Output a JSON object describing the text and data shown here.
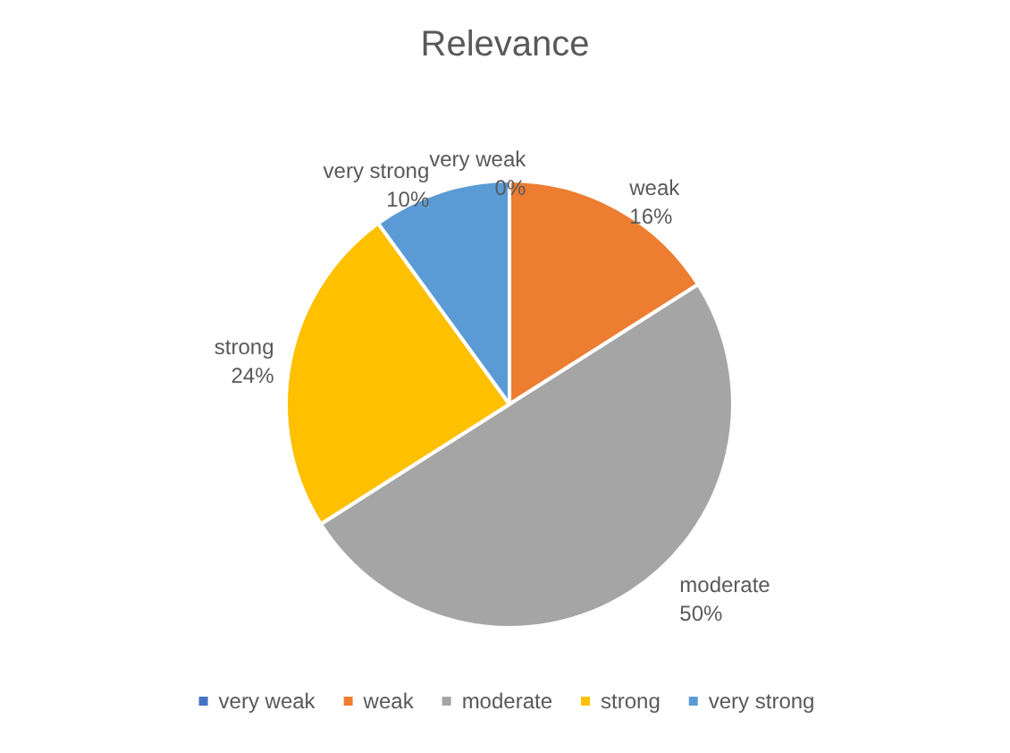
{
  "chart_data": {
    "type": "pie",
    "title": "Relevance",
    "categories": [
      "very weak",
      "weak",
      "moderate",
      "strong",
      "very strong"
    ],
    "values": [
      0,
      16,
      50,
      24,
      10
    ],
    "colors": [
      "#4472c4",
      "#ed7d31",
      "#a5a5a5",
      "#ffc000",
      "#5b9bd5"
    ],
    "value_labels": [
      "0%",
      "16%",
      "50%",
      "24%",
      "10%"
    ],
    "legend": "bottom"
  }
}
